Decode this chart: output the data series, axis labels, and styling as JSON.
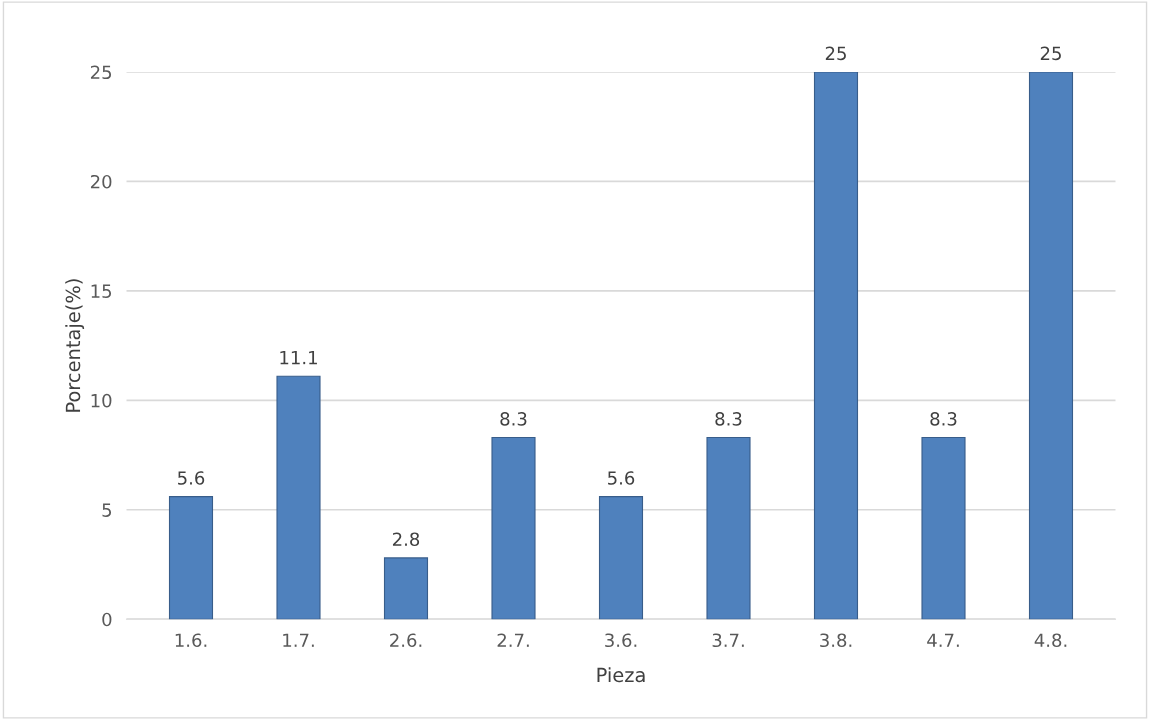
{
  "chart_data": {
    "type": "bar",
    "xlabel": "Pieza",
    "ylabel": "Porcentaje(%)",
    "categories": [
      "1.6.",
      "1.7.",
      "2.6.",
      "2.7.",
      "3.6.",
      "3.7.",
      "3.8.",
      "4.7.",
      "4.8."
    ],
    "values": [
      5.6,
      11.1,
      2.8,
      8.3,
      5.6,
      8.3,
      25,
      8.3,
      25
    ],
    "color": "#4f81bd",
    "ylim": [
      0,
      25
    ],
    "yticks": [
      0,
      5,
      10,
      15,
      20,
      25
    ],
    "grid": "y",
    "data_labels": true
  }
}
